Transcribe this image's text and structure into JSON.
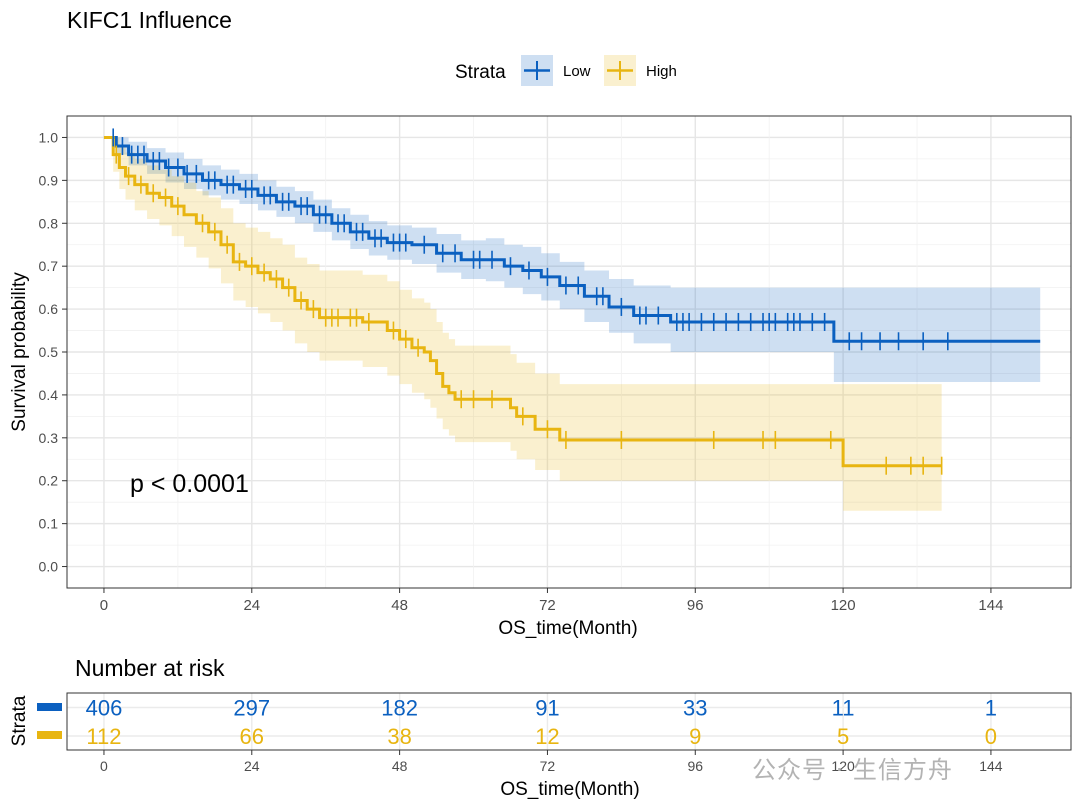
{
  "chart_data": {
    "type": "line",
    "title": "KIFC1 Influence",
    "xlabel": "OS_time(Month)",
    "ylabel": "Survival probability",
    "xlim": [
      -6,
      157
    ],
    "ylim": [
      -0.05,
      1.05
    ],
    "x_ticks": [
      0,
      24,
      48,
      72,
      96,
      120,
      144
    ],
    "x_tick_labels": [
      "0",
      "24",
      "48",
      "72",
      "96",
      "120",
      "144"
    ],
    "y_ticks": [
      0,
      0.1,
      0.2,
      0.3,
      0.4,
      0.5,
      0.6,
      0.7,
      0.8,
      0.9,
      1
    ],
    "y_tick_labels": [
      "0.0",
      "0.1",
      "0.2",
      "0.3",
      "0.4",
      "0.5",
      "0.6",
      "0.7",
      "0.8",
      "0.9",
      "1.0"
    ],
    "grid": true,
    "legend": {
      "title": "Strata",
      "position": "top"
    },
    "annotation": "p < 0.0001",
    "series": [
      {
        "name": "Low",
        "color": "#0B60C0",
        "step": [
          [
            0,
            1.0
          ],
          [
            2,
            0.98
          ],
          [
            4,
            0.96
          ],
          [
            7,
            0.945
          ],
          [
            10,
            0.93
          ],
          [
            13,
            0.915
          ],
          [
            16,
            0.9
          ],
          [
            19,
            0.89
          ],
          [
            22,
            0.88
          ],
          [
            25,
            0.865
          ],
          [
            28,
            0.85
          ],
          [
            31,
            0.84
          ],
          [
            34,
            0.82
          ],
          [
            37,
            0.8
          ],
          [
            40,
            0.78
          ],
          [
            43,
            0.765
          ],
          [
            46,
            0.755
          ],
          [
            50,
            0.75
          ],
          [
            54,
            0.73
          ],
          [
            58,
            0.715
          ],
          [
            62,
            0.715
          ],
          [
            65,
            0.7
          ],
          [
            68,
            0.69
          ],
          [
            71,
            0.675
          ],
          [
            74,
            0.655
          ],
          [
            78,
            0.63
          ],
          [
            82,
            0.605
          ],
          [
            86,
            0.585
          ],
          [
            92,
            0.57
          ],
          [
            100,
            0.57
          ],
          [
            110,
            0.57
          ],
          [
            118.5,
            0.525
          ],
          [
            152,
            0.525
          ]
        ],
        "ci_upper": [
          [
            0,
            1.0
          ],
          [
            2,
            1.0
          ],
          [
            4,
            0.99
          ],
          [
            7,
            0.975
          ],
          [
            10,
            0.965
          ],
          [
            13,
            0.95
          ],
          [
            16,
            0.935
          ],
          [
            19,
            0.925
          ],
          [
            22,
            0.915
          ],
          [
            25,
            0.9
          ],
          [
            28,
            0.885
          ],
          [
            31,
            0.875
          ],
          [
            34,
            0.855
          ],
          [
            37,
            0.835
          ],
          [
            40,
            0.82
          ],
          [
            43,
            0.805
          ],
          [
            46,
            0.795
          ],
          [
            50,
            0.79
          ],
          [
            54,
            0.775
          ],
          [
            58,
            0.76
          ],
          [
            62,
            0.765
          ],
          [
            65,
            0.75
          ],
          [
            68,
            0.745
          ],
          [
            71,
            0.73
          ],
          [
            74,
            0.71
          ],
          [
            78,
            0.69
          ],
          [
            82,
            0.67
          ],
          [
            86,
            0.655
          ],
          [
            92,
            0.65
          ],
          [
            100,
            0.65
          ],
          [
            110,
            0.65
          ],
          [
            118.5,
            0.65
          ],
          [
            152,
            0.65
          ]
        ],
        "ci_lower": [
          [
            0,
            1.0
          ],
          [
            2,
            0.96
          ],
          [
            4,
            0.935
          ],
          [
            7,
            0.915
          ],
          [
            10,
            0.895
          ],
          [
            13,
            0.88
          ],
          [
            16,
            0.865
          ],
          [
            19,
            0.855
          ],
          [
            22,
            0.845
          ],
          [
            25,
            0.83
          ],
          [
            28,
            0.815
          ],
          [
            31,
            0.8
          ],
          [
            34,
            0.78
          ],
          [
            37,
            0.76
          ],
          [
            40,
            0.74
          ],
          [
            43,
            0.725
          ],
          [
            46,
            0.715
          ],
          [
            50,
            0.705
          ],
          [
            54,
            0.685
          ],
          [
            58,
            0.67
          ],
          [
            62,
            0.665
          ],
          [
            65,
            0.65
          ],
          [
            68,
            0.635
          ],
          [
            71,
            0.62
          ],
          [
            74,
            0.6
          ],
          [
            78,
            0.57
          ],
          [
            82,
            0.545
          ],
          [
            86,
            0.52
          ],
          [
            92,
            0.5
          ],
          [
            100,
            0.5
          ],
          [
            110,
            0.5
          ],
          [
            118.5,
            0.43
          ],
          [
            152,
            0.43
          ]
        ],
        "censor_x": [
          1.5,
          3,
          4.5,
          5.5,
          6.5,
          8,
          9,
          10.5,
          12,
          13.5,
          15,
          17,
          18,
          20,
          21,
          23,
          24,
          26,
          27,
          29,
          30,
          32,
          33,
          35,
          36,
          38,
          39,
          41,
          42,
          44,
          45,
          47,
          48,
          49,
          52,
          55,
          57,
          60,
          61,
          63,
          66,
          69,
          72,
          75,
          77,
          80,
          81,
          84,
          87,
          88,
          90,
          93,
          94,
          95,
          97,
          99,
          101,
          103,
          105,
          107,
          108,
          109,
          111,
          112,
          113,
          115,
          117,
          121,
          123,
          126,
          129,
          133,
          137
        ]
      },
      {
        "name": "High",
        "color": "#E8B511",
        "step": [
          [
            0,
            1.0
          ],
          [
            1.5,
            0.96
          ],
          [
            2.5,
            0.93
          ],
          [
            3.5,
            0.91
          ],
          [
            5,
            0.89
          ],
          [
            7,
            0.87
          ],
          [
            9,
            0.86
          ],
          [
            11,
            0.84
          ],
          [
            13,
            0.82
          ],
          [
            15,
            0.8
          ],
          [
            17,
            0.78
          ],
          [
            19,
            0.75
          ],
          [
            21,
            0.71
          ],
          [
            23,
            0.7
          ],
          [
            25,
            0.685
          ],
          [
            27,
            0.67
          ],
          [
            29,
            0.65
          ],
          [
            31,
            0.62
          ],
          [
            33,
            0.6
          ],
          [
            35,
            0.58
          ],
          [
            42,
            0.57
          ],
          [
            46,
            0.55
          ],
          [
            48,
            0.53
          ],
          [
            50,
            0.51
          ],
          [
            52,
            0.5
          ],
          [
            53,
            0.48
          ],
          [
            54,
            0.45
          ],
          [
            55,
            0.42
          ],
          [
            56,
            0.405
          ],
          [
            57,
            0.39
          ],
          [
            61,
            0.39
          ],
          [
            66,
            0.37
          ],
          [
            67,
            0.35
          ],
          [
            70,
            0.32
          ],
          [
            74,
            0.295
          ],
          [
            90,
            0.295
          ],
          [
            120,
            0.235
          ],
          [
            136,
            0.235
          ]
        ],
        "ci_upper": [
          [
            0,
            1.0
          ],
          [
            1.5,
            1.0
          ],
          [
            2.5,
            0.98
          ],
          [
            3.5,
            0.965
          ],
          [
            5,
            0.95
          ],
          [
            7,
            0.935
          ],
          [
            9,
            0.925
          ],
          [
            11,
            0.91
          ],
          [
            13,
            0.895
          ],
          [
            15,
            0.875
          ],
          [
            17,
            0.86
          ],
          [
            19,
            0.835
          ],
          [
            21,
            0.8
          ],
          [
            23,
            0.79
          ],
          [
            25,
            0.78
          ],
          [
            27,
            0.765
          ],
          [
            29,
            0.75
          ],
          [
            31,
            0.72
          ],
          [
            33,
            0.705
          ],
          [
            35,
            0.69
          ],
          [
            42,
            0.68
          ],
          [
            46,
            0.665
          ],
          [
            48,
            0.645
          ],
          [
            50,
            0.625
          ],
          [
            52,
            0.615
          ],
          [
            53,
            0.6
          ],
          [
            54,
            0.57
          ],
          [
            55,
            0.545
          ],
          [
            56,
            0.53
          ],
          [
            57,
            0.515
          ],
          [
            61,
            0.515
          ],
          [
            66,
            0.495
          ],
          [
            67,
            0.475
          ],
          [
            70,
            0.45
          ],
          [
            74,
            0.425
          ],
          [
            90,
            0.425
          ],
          [
            120,
            0.425
          ],
          [
            136,
            0.425
          ]
        ],
        "ci_lower": [
          [
            0,
            1.0
          ],
          [
            1.5,
            0.92
          ],
          [
            2.5,
            0.88
          ],
          [
            3.5,
            0.855
          ],
          [
            5,
            0.83
          ],
          [
            7,
            0.81
          ],
          [
            9,
            0.795
          ],
          [
            11,
            0.77
          ],
          [
            13,
            0.745
          ],
          [
            15,
            0.72
          ],
          [
            17,
            0.695
          ],
          [
            19,
            0.66
          ],
          [
            21,
            0.62
          ],
          [
            23,
            0.605
          ],
          [
            25,
            0.59
          ],
          [
            27,
            0.57
          ],
          [
            29,
            0.55
          ],
          [
            31,
            0.52
          ],
          [
            33,
            0.5
          ],
          [
            35,
            0.48
          ],
          [
            42,
            0.465
          ],
          [
            46,
            0.445
          ],
          [
            48,
            0.425
          ],
          [
            50,
            0.405
          ],
          [
            52,
            0.39
          ],
          [
            53,
            0.37
          ],
          [
            54,
            0.345
          ],
          [
            55,
            0.32
          ],
          [
            56,
            0.305
          ],
          [
            57,
            0.29
          ],
          [
            61,
            0.29
          ],
          [
            66,
            0.27
          ],
          [
            67,
            0.25
          ],
          [
            70,
            0.225
          ],
          [
            74,
            0.2
          ],
          [
            90,
            0.2
          ],
          [
            120,
            0.13
          ],
          [
            136,
            0.13
          ]
        ],
        "censor_x": [
          2,
          4,
          6,
          8,
          10,
          12,
          16,
          18,
          20,
          22,
          24,
          26,
          28,
          30,
          32,
          34,
          36,
          37,
          38,
          40,
          41,
          43,
          47,
          49,
          51,
          58,
          60,
          63,
          68,
          72,
          75,
          84,
          99,
          107,
          109,
          118,
          127,
          131,
          133,
          136
        ]
      }
    ]
  },
  "risk_table": {
    "title": "Number at risk",
    "y_label": "Strata",
    "xlabel": "OS_time(Month)",
    "times": [
      "0",
      "24",
      "48",
      "72",
      "96",
      "120",
      "144"
    ],
    "rows": [
      {
        "name": "Low",
        "color": "#0B60C0",
        "values": [
          "406",
          "297",
          "182",
          "91",
          "33",
          "11",
          "1"
        ]
      },
      {
        "name": "High",
        "color": "#E8B511",
        "values": [
          "112",
          "66",
          "38",
          "12",
          "9",
          "5",
          "0"
        ]
      }
    ]
  },
  "watermark": "公众号 · 生信方舟"
}
